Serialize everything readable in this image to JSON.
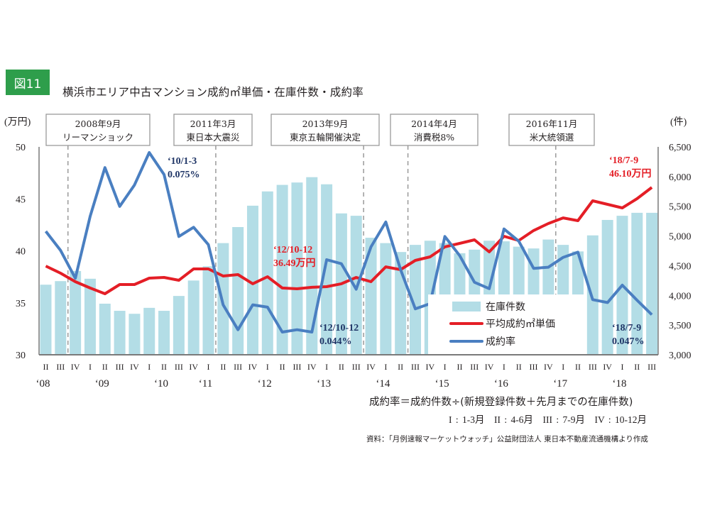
{
  "figure": {
    "badge": "図11",
    "title": "横浜市エリア中古マンション成約㎡単価・在庫件数・成約率"
  },
  "notes": {
    "formula": "成約率＝成約件数÷(新規登録件数＋先月までの在庫件数)",
    "quarters": "I : 1-3月　II : 4-6月　III : 7-9月　IV : 10-12月",
    "source": "資料：「月例速報マーケットウォッチ」公益財団法人 東日本不動産流通機構より作成"
  },
  "chart_data": {
    "type": "bar+line",
    "title": "横浜市エリア中古マンション成約㎡単価・在庫件数・成約率",
    "y_left": {
      "unit_label": "(万円)",
      "range": [
        30,
        50
      ],
      "ticks": [
        "30",
        "35",
        "40",
        "45",
        "50"
      ]
    },
    "y_right": {
      "unit_label": "(件)",
      "range": [
        3000,
        6500
      ],
      "ticks": [
        "3,000",
        "3,500",
        "4,000",
        "4,500",
        "5,000",
        "5,500",
        "6,000",
        "6,500"
      ]
    },
    "categories": [
      "2008Q2",
      "2008Q3",
      "2008Q4",
      "2009Q1",
      "2009Q2",
      "2009Q3",
      "2009Q4",
      "2010Q1",
      "2010Q2",
      "2010Q3",
      "2010Q4",
      "2011Q1",
      "2011Q2",
      "2011Q3",
      "2011Q4",
      "2012Q1",
      "2012Q2",
      "2012Q3",
      "2012Q4",
      "2013Q1",
      "2013Q2",
      "2013Q3",
      "2013Q4",
      "2014Q1",
      "2014Q2",
      "2014Q3",
      "2014Q4",
      "2015Q1",
      "2015Q2",
      "2015Q3",
      "2015Q4",
      "2016Q1",
      "2016Q2",
      "2016Q3",
      "2016Q4",
      "2017Q1",
      "2017Q2",
      "2017Q3",
      "2017Q4",
      "2018Q1",
      "2018Q2",
      "2018Q3"
    ],
    "quarter_labels": [
      "II",
      "III",
      "IV",
      "I",
      "II",
      "III",
      "IV",
      "I",
      "II",
      "III",
      "IV",
      "I",
      "II",
      "III",
      "IV",
      "I",
      "II",
      "III",
      "IV",
      "I",
      "II",
      "III",
      "IV",
      "I",
      "II",
      "III",
      "IV",
      "I",
      "II",
      "III",
      "IV",
      "I",
      "II",
      "III",
      "IV",
      "I",
      "II",
      "III",
      "IV",
      "I",
      "II",
      "III"
    ],
    "year_labels": [
      {
        "label": "‘08",
        "index": 0
      },
      {
        "label": "‘09",
        "index": 4
      },
      {
        "label": "‘10",
        "index": 8
      },
      {
        "label": "‘11",
        "index": 11
      },
      {
        "label": "‘12",
        "index": 15
      },
      {
        "label": "‘13",
        "index": 19
      },
      {
        "label": "‘14",
        "index": 23
      },
      {
        "label": "‘15",
        "index": 27
      },
      {
        "label": "‘16",
        "index": 31
      },
      {
        "label": "‘17",
        "index": 35
      },
      {
        "label": "‘18",
        "index": 39
      }
    ],
    "series": [
      {
        "name": "在庫件数",
        "type": "bar",
        "axis": "right",
        "color": "#b3dde6",
        "values": [
          4180,
          4240,
          4410,
          4280,
          3860,
          3740,
          3690,
          3790,
          3740,
          3990,
          4250,
          4490,
          4880,
          5150,
          5510,
          5750,
          5860,
          5900,
          5990,
          5870,
          5380,
          5340,
          4970,
          4880,
          4730,
          4850,
          4920,
          4880,
          4710,
          4770,
          4920,
          4910,
          4820,
          4790,
          4940,
          4850,
          4740,
          5010,
          5270,
          5340,
          5390,
          5390
        ]
      },
      {
        "name": "平均成約㎡単価",
        "type": "line",
        "axis": "left",
        "color": "#e41e26",
        "unit": "万円",
        "values": [
          38.53,
          37.85,
          37.03,
          36.42,
          35.87,
          36.76,
          36.76,
          37.37,
          37.44,
          37.17,
          38.26,
          38.26,
          37.58,
          37.71,
          36.83,
          37.51,
          36.42,
          36.35,
          36.49,
          36.55,
          36.83,
          37.44,
          37.03,
          38.46,
          38.19,
          39.08,
          39.42,
          40.38,
          40.72,
          41.06,
          39.9,
          41.4,
          40.99,
          41.95,
          42.63,
          43.17,
          42.9,
          44.81,
          44.47,
          44.13,
          45.02,
          46.1
        ]
      },
      {
        "name": "成約率",
        "type": "line",
        "axis": "hidden",
        "color": "#4a7fc1",
        "unit": "%",
        "values": [
          0.0614,
          0.0581,
          0.0533,
          0.064,
          0.0724,
          0.0657,
          0.0694,
          0.075,
          0.0712,
          0.0605,
          0.0621,
          0.0591,
          0.0487,
          0.0444,
          0.0487,
          0.0483,
          0.044,
          0.0444,
          0.044,
          0.0565,
          0.0558,
          0.0514,
          0.0587,
          0.063,
          0.0548,
          0.048,
          0.0489,
          0.0605,
          0.0572,
          0.0526,
          0.0515,
          0.0618,
          0.0597,
          0.055,
          0.0552,
          0.0569,
          0.0578,
          0.0496,
          0.0491,
          0.0521,
          0.0495,
          0.047
        ]
      }
    ],
    "events": [
      {
        "line1": "2008年9月",
        "line2": "リーマンショック",
        "index": 1
      },
      {
        "line1": "2011年3月",
        "line2": "東日本大震災",
        "index": 11
      },
      {
        "line1": "2013年9月",
        "line2": "東京五輪開催決定",
        "index": 21
      },
      {
        "line1": "2014年4月",
        "line2": "消費税8%",
        "index": 24
      },
      {
        "line1": "2016年11月",
        "line2": "米大統領選",
        "index": 34
      }
    ],
    "annotations": [
      {
        "series": "成約率",
        "line1": "‘10/1-3",
        "line2": "0.075%",
        "index": 7,
        "color": "blue"
      },
      {
        "series": "平均成約㎡単価",
        "line1": "‘12/10-12",
        "line2": "36.49万円",
        "index": 18,
        "color": "red"
      },
      {
        "series": "成約率",
        "line1": "‘12/10-12",
        "line2": "0.044%",
        "index": 18,
        "color": "blue"
      },
      {
        "series": "平均成約㎡単価",
        "line1": "‘18/7-9",
        "line2": "46.10万円",
        "index": 41,
        "color": "red"
      },
      {
        "series": "成約率",
        "line1": "‘18/7-9",
        "line2": "0.047%",
        "index": 41,
        "color": "blue"
      }
    ],
    "legend": {
      "position": "bottom-right",
      "items": [
        "在庫件数",
        "平均成約㎡単価",
        "成約率"
      ]
    }
  }
}
